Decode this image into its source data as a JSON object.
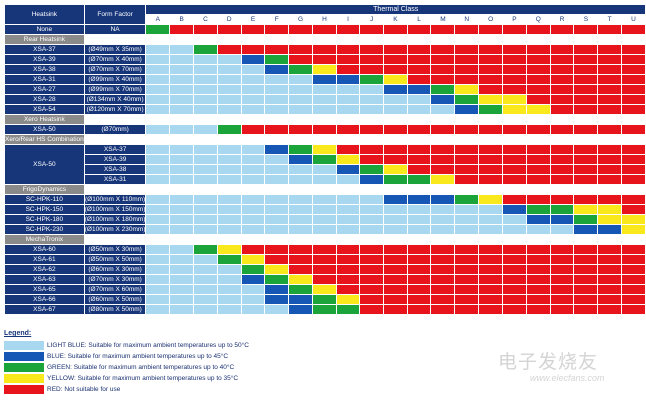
{
  "headers": {
    "heatsink": "Heatsink",
    "form_factor": "Form Factor",
    "thermal_class": "Thermal Class",
    "none": "None",
    "na": "NA"
  },
  "columns": [
    "A",
    "B",
    "C",
    "D",
    "E",
    "F",
    "G",
    "H",
    "I",
    "J",
    "K",
    "L",
    "M",
    "N",
    "O",
    "P",
    "Q",
    "R",
    "S",
    "T",
    "U"
  ],
  "color_codes": {
    "L": "#a8d8f0",
    "B": "#1656b4",
    "G": "#1aa43a",
    "Y": "#f8e81c",
    "R": "#e8141c",
    "W": "#ffffff"
  },
  "none_row": "GRRRRRRRRRRRRRRRRRRRR",
  "sections": [
    {
      "label": "Rear Heatsink",
      "rows": [
        {
          "name": "XSA-37",
          "ff": "(Ø49mm X 35mm)",
          "cells": "LLGRRRRRRRRRRRRRRRRRR"
        },
        {
          "name": "XSA-39",
          "ff": "(Ø70mm X 40mm)",
          "cells": "LLLLBGRRRRRRRRRRRRRRR"
        },
        {
          "name": "XSA-38",
          "ff": "(Ø70mm X 70mm)",
          "cells": "LLLLLBGYRRRRRRRRRRRRR"
        },
        {
          "name": "XSA-31",
          "ff": "(Ø99mm X 40mm)",
          "cells": "LLLLLLLBBGYRRRRRRRRRR"
        },
        {
          "name": "XSA-27",
          "ff": "(Ø99mm X 70mm)",
          "cells": "LLLLLLLLLLBBGYRRRRRRR"
        },
        {
          "name": "XSA-28",
          "ff": "(Ø134mm X 40mm)",
          "cells": "LLLLLLLLLLLLBGYYRRRRR"
        },
        {
          "name": "XSA-54",
          "ff": "(Ø120mm X 70mm)",
          "cells": "LLLLLLLLLLLLLBGYYRRRR"
        }
      ]
    },
    {
      "label": "Xero Heatsink",
      "rows": [
        {
          "name": "XSA-50",
          "ff": "(Ø70mm)",
          "cells": "LLLGRRRRRRRRRRRRRRRRR"
        }
      ]
    },
    {
      "label": "Xero/Rear HS Combination",
      "rows": [
        {
          "name": "XSA-50",
          "sub": "XSA-37",
          "cells": "LLLLLBGYRRRRRRRRRRRRR"
        },
        {
          "name": "",
          "sub": "XSA-39",
          "cells": "LLLLLLBGYRRRRRRRRRRRR"
        },
        {
          "name": "",
          "sub": "XSA-38",
          "cells": "LLLLLLLLBGYRRRRRRRRRR"
        },
        {
          "name": "",
          "sub": "XSA-31",
          "cells": "LLLLLLLLLBGGYRRRRRRRR"
        }
      ]
    },
    {
      "label": "FrigoDynamics",
      "rows": [
        {
          "name": "SC-HPK-110",
          "ff": "(Ø100mm X 110mm)",
          "cells": "LLLLLLLLLLBBBGYRRRRRR"
        },
        {
          "name": "SC-HPK-150",
          "ff": "(Ø100mm X 150mm)",
          "cells": "LLLLLLLLLLLLLLLBGGYYR"
        },
        {
          "name": "SC-HPK-180",
          "ff": "(Ø100mm X 180mm)",
          "cells": "LLLLLLLLLLLLLLLLBBGYY"
        },
        {
          "name": "SC-HPK-230",
          "ff": "(Ø100mm X 230mm)",
          "cells": "LLLLLLLLLLLLLLLLLLBBY"
        }
      ]
    },
    {
      "label": "MechaTronix",
      "rows": [
        {
          "name": "XSA-60",
          "ff": "(Ø50mm X 30mm)",
          "cells": "LLGYRRRRRRRRRRRRRRRRR"
        },
        {
          "name": "XSA-61",
          "ff": "(Ø50mm X 50mm)",
          "cells": "LLLGYRRRRRRRRRRRRRRRR"
        },
        {
          "name": "XSA-62",
          "ff": "(Ø60mm X 30mm)",
          "cells": "LLLLGYRRRRRRRRRRRRRRR"
        },
        {
          "name": "XSA-63",
          "ff": "(Ø70mm X 30mm)",
          "cells": "LLLLBGYRRRRRRRRRRRRRR"
        },
        {
          "name": "XSA-65",
          "ff": "(Ø70mm X 60mm)",
          "cells": "LLLLLBGYRRRRRRRRRRRRR"
        },
        {
          "name": "XSA-66",
          "ff": "(Ø60mm X 50mm)",
          "cells": "LLLLLBBGYRRRRRRRRRRRR"
        },
        {
          "name": "XSA-67",
          "ff": "(Ø80mm X 50mm)",
          "cells": "LLLLLLBGGRRRRRRRRRRRR"
        }
      ]
    }
  ],
  "legend": {
    "title": "Legend:",
    "items": [
      {
        "code": "L",
        "text": "LIGHT BLUE: Suitable for maximum ambient temperatures up to 50°C"
      },
      {
        "code": "B",
        "text": "BLUE: Suitable for maximum ambient temperatures up to 45°C"
      },
      {
        "code": "G",
        "text": "GREEN: Suitable for maximum ambient temperatures up to 40°C"
      },
      {
        "code": "Y",
        "text": "YELLOW: Suitable for maximum ambient temperatures up to 35°C"
      },
      {
        "code": "R",
        "text": "RED: Not suitable for use"
      }
    ]
  },
  "watermark": {
    "cn": "电子发烧友",
    "en": "www.elecfans.com"
  }
}
